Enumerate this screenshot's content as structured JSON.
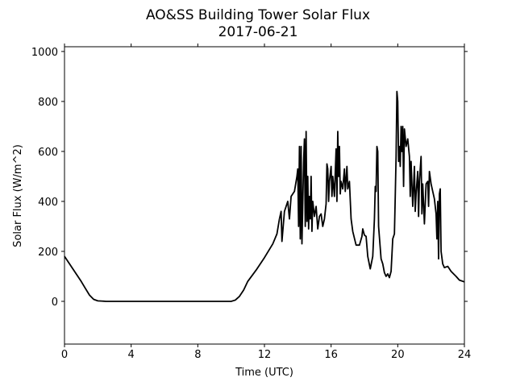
{
  "chart_data": {
    "type": "line",
    "title": "AO&SS Building Tower Solar Flux",
    "subtitle": "2017-06-21",
    "x_label": "Time (UTC)",
    "y_label": "Solar Flux (W/m^2)",
    "xlim": [
      0,
      24
    ],
    "xticks": [
      0,
      4,
      8,
      12,
      16,
      20,
      24
    ],
    "ylim": [
      -171,
      1019
    ],
    "yticks": [
      0,
      200,
      400,
      600,
      800,
      1000
    ],
    "x": [
      0,
      0.25,
      0.5,
      0.75,
      1,
      1.25,
      1.5,
      1.75,
      2,
      2.5,
      3,
      4,
      5,
      6,
      7,
      8,
      9,
      9.5,
      10,
      10.25,
      10.5,
      10.75,
      11,
      11.5,
      12,
      12.5,
      12.75,
      12.9,
      13,
      13.05,
      13.1,
      13.2,
      13.3,
      13.4,
      13.5,
      13.6,
      13.8,
      13.95,
      14,
      14.05,
      14.1,
      14.15,
      14.2,
      14.25,
      14.35,
      14.4,
      14.45,
      14.5,
      14.55,
      14.6,
      14.65,
      14.7,
      14.75,
      14.8,
      14.85,
      14.9,
      15,
      15.1,
      15.2,
      15.3,
      15.4,
      15.5,
      15.6,
      15.7,
      15.75,
      15.8,
      15.85,
      15.9,
      16,
      16.05,
      16.1,
      16.2,
      16.3,
      16.35,
      16.4,
      16.45,
      16.5,
      16.55,
      16.6,
      16.7,
      16.8,
      16.85,
      16.95,
      17,
      17.1,
      17.2,
      17.3,
      17.5,
      17.7,
      17.85,
      17.9,
      18,
      18.1,
      18.2,
      18.35,
      18.5,
      18.6,
      18.65,
      18.7,
      18.75,
      18.8,
      18.85,
      19,
      19.1,
      19.2,
      19.3,
      19.4,
      19.5,
      19.6,
      19.7,
      19.8,
      19.85,
      19.9,
      19.95,
      20,
      20.05,
      20.1,
      20.15,
      20.2,
      20.25,
      20.3,
      20.35,
      20.4,
      20.5,
      20.6,
      20.7,
      20.75,
      20.8,
      20.9,
      21,
      21.05,
      21.1,
      21.2,
      21.25,
      21.3,
      21.4,
      21.45,
      21.5,
      21.6,
      21.7,
      21.8,
      21.85,
      21.9,
      22,
      22.1,
      22.2,
      22.3,
      22.35,
      22.4,
      22.45,
      22.5,
      22.55,
      22.6,
      22.7,
      22.8,
      23,
      23.2,
      23.5,
      23.7,
      24
    ],
    "series": [
      {
        "name": "Solar Flux",
        "color": "#000000",
        "values": [
          180,
          155,
          130,
          105,
          80,
          52,
          25,
          8,
          2,
          0,
          0,
          0,
          0,
          0,
          0,
          0,
          0,
          0,
          0,
          5,
          20,
          45,
          80,
          125,
          175,
          230,
          270,
          330,
          360,
          240,
          280,
          360,
          380,
          400,
          330,
          420,
          440,
          500,
          530,
          300,
          620,
          250,
          620,
          230,
          560,
          650,
          300,
          680,
          320,
          500,
          290,
          420,
          330,
          500,
          280,
          400,
          340,
          380,
          290,
          340,
          350,
          300,
          330,
          390,
          550,
          530,
          400,
          480,
          540,
          420,
          500,
          420,
          610,
          400,
          680,
          500,
          620,
          430,
          480,
          450,
          530,
          440,
          540,
          450,
          480,
          330,
          280,
          225,
          225,
          260,
          290,
          265,
          260,
          180,
          130,
          180,
          330,
          460,
          440,
          620,
          600,
          300,
          170,
          150,
          115,
          100,
          110,
          95,
          120,
          250,
          270,
          420,
          580,
          840,
          800,
          560,
          620,
          540,
          700,
          600,
          700,
          460,
          690,
          620,
          650,
          580,
          420,
          560,
          380,
          540,
          360,
          430,
          520,
          340,
          480,
          580,
          350,
          470,
          310,
          470,
          480,
          380,
          520,
          470,
          440,
          410,
          350,
          250,
          400,
          170,
          430,
          450,
          200,
          150,
          135,
          140,
          120,
          100,
          85,
          78
        ]
      }
    ]
  }
}
